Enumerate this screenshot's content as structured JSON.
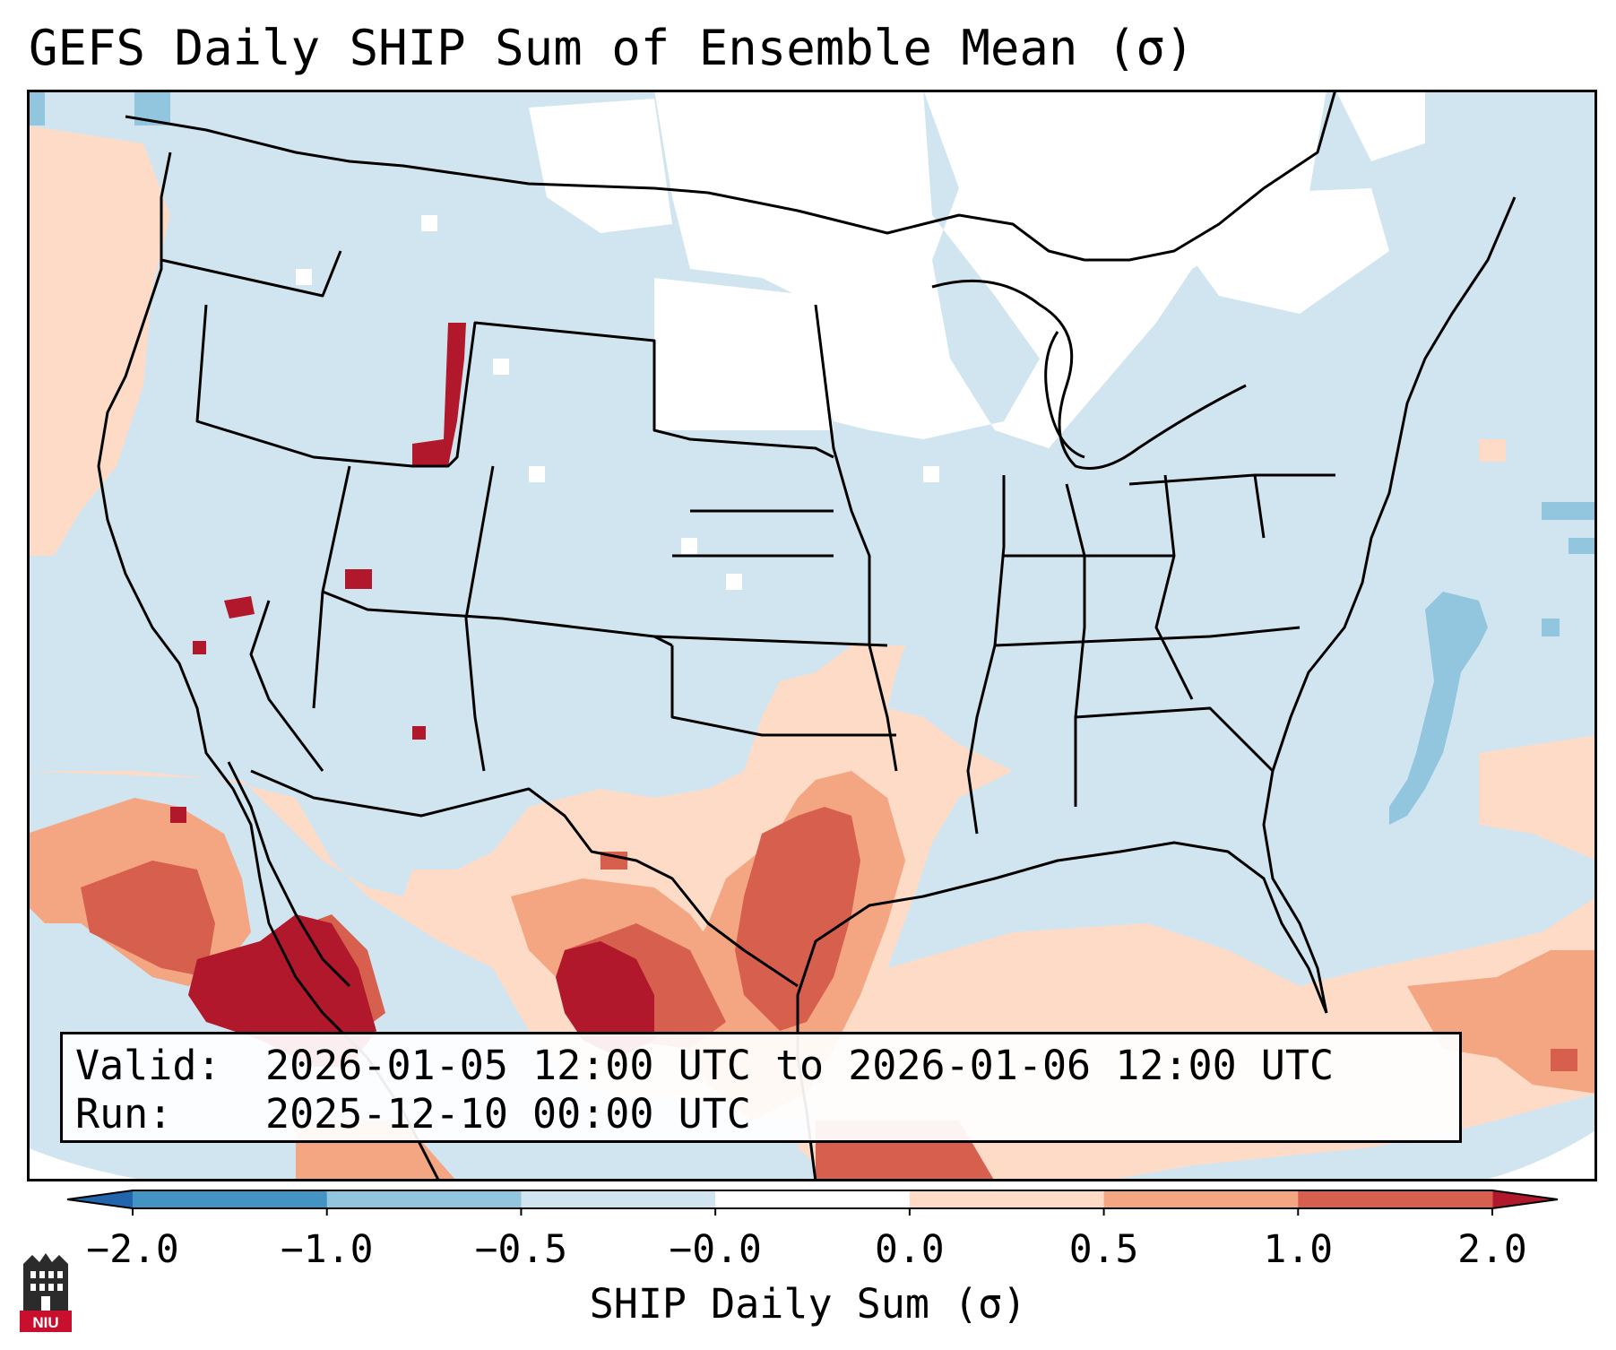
{
  "title": "GEFS Daily SHIP Sum of Ensemble Mean (σ)",
  "valid_label": "Valid:",
  "valid_value": "2026-01-05 12:00 UTC to 2026-01-06 12:00 UTC",
  "run_label": "Run:",
  "run_value": "2025-12-10 00:00 UTC",
  "colorbar": {
    "label": "SHIP Daily Sum (σ)",
    "tick_labels": [
      "−2.0",
      "−1.0",
      "−0.5",
      "−0.0",
      "0.0",
      "0.5",
      "1.0",
      "2.0"
    ],
    "bins": [
      {
        "range": "< -2.0",
        "color": "#2166ac"
      },
      {
        "range": "-2.0 to -1.0",
        "color": "#4393c3"
      },
      {
        "range": "-1.0 to -0.5",
        "color": "#92c5de"
      },
      {
        "range": "-0.5 to -0.0",
        "color": "#d1e5f0"
      },
      {
        "range": "-0.0 to 0.0",
        "color": "#ffffff"
      },
      {
        "range": "0.0 to 0.5",
        "color": "#fddbc7"
      },
      {
        "range": "0.5 to 1.0",
        "color": "#f4a582"
      },
      {
        "range": "1.0 to 2.0",
        "color": "#d6604d"
      },
      {
        "range": "> 2.0",
        "color": "#b2182b"
      }
    ]
  },
  "logo": {
    "text": "NIU",
    "icon": "niu-tower-logo-icon"
  }
}
